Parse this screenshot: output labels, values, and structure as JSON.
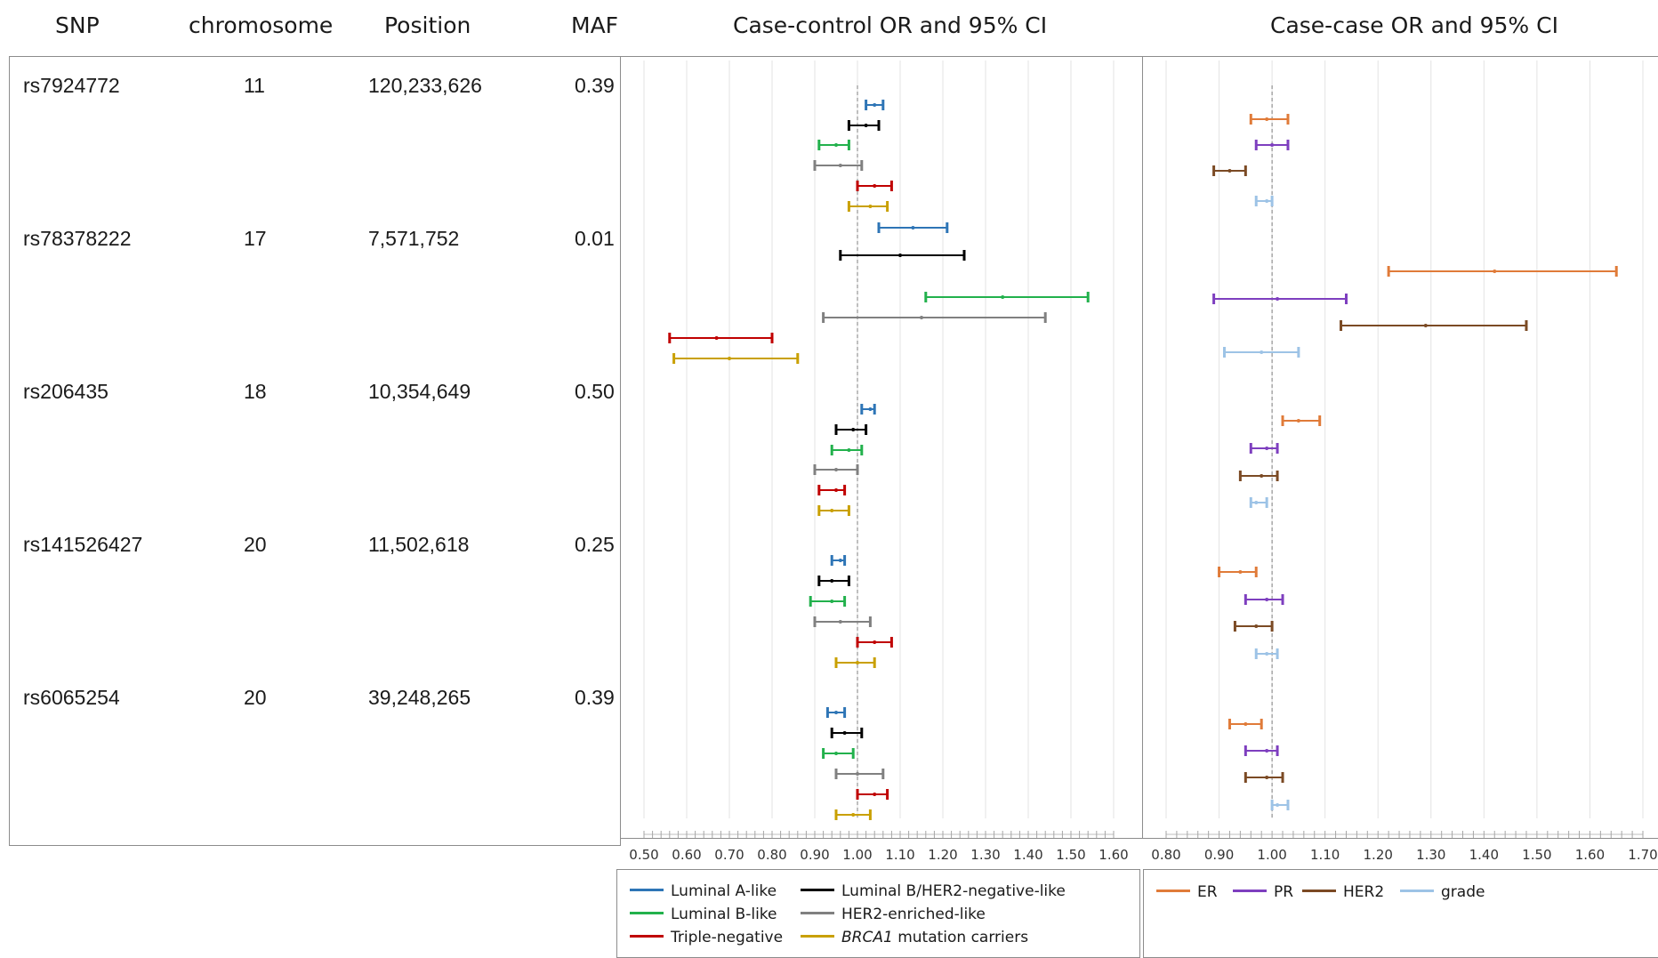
{
  "headers": {
    "snp": "SNP",
    "chromosome": "chromosome",
    "position": "Position",
    "maf": "MAF",
    "case_control": "Case-control OR and 95% CI",
    "case_case": "Case-case OR and 95% CI"
  },
  "rows": [
    {
      "snp": "rs7924772",
      "chromosome": "11",
      "position": "120,233,626",
      "maf": "0.39"
    },
    {
      "snp": "rs78378222",
      "chromosome": "17",
      "position": "7,571,752",
      "maf": "0.01"
    },
    {
      "snp": "rs206435",
      "chromosome": "18",
      "position": "10,354,649",
      "maf": "0.50"
    },
    {
      "snp": "rs141526427",
      "chromosome": "20",
      "position": "11,502,618",
      "maf": "0.25"
    },
    {
      "snp": "rs6065254",
      "chromosome": "20",
      "position": "39,248,265",
      "maf": "0.39"
    }
  ],
  "legend_case_control": [
    {
      "label": "Luminal A-like",
      "color": "#2e75b6",
      "italic_prefix": ""
    },
    {
      "label": "Luminal B/HER2-negative-like",
      "color": "#000000",
      "italic_prefix": ""
    },
    {
      "label": "Luminal B-like",
      "color": "#22b14c",
      "italic_prefix": ""
    },
    {
      "label": "HER2-enriched-like",
      "color": "#808080",
      "italic_prefix": ""
    },
    {
      "label": "Triple-negative",
      "color": "#c00000",
      "italic_prefix": ""
    },
    {
      "label": " mutation carriers",
      "color": "#c9a000",
      "italic_prefix": "BRCA1"
    }
  ],
  "legend_case_case": [
    {
      "label": "ER",
      "color": "#e07b39"
    },
    {
      "label": "PR",
      "color": "#7e3fbf"
    },
    {
      "label": "HER2",
      "color": "#7b4a24"
    },
    {
      "label": "grade",
      "color": "#9dc3e6"
    }
  ],
  "chart_data": [
    {
      "type": "forest",
      "title": "Case-control OR and 95% CI",
      "xlim": [
        0.5,
        1.6
      ],
      "ticks": [
        "0.50",
        "0.60",
        "0.70",
        "0.80",
        "0.90",
        "1.00",
        "1.10",
        "1.20",
        "1.30",
        "1.40",
        "1.50",
        "1.60"
      ],
      "reference_line": 1.0,
      "series": [
        {
          "name": "Luminal A-like",
          "color": "#2e75b6"
        },
        {
          "name": "Luminal B/HER2-negative-like",
          "color": "#000000"
        },
        {
          "name": "Luminal B-like",
          "color": "#22b14c"
        },
        {
          "name": "HER2-enriched-like",
          "color": "#808080"
        },
        {
          "name": "Triple-negative",
          "color": "#c00000"
        },
        {
          "name": "BRCA1 mutation carriers",
          "color": "#c9a000"
        }
      ],
      "groups": [
        {
          "snp": "rs7924772",
          "estimates": [
            {
              "or": 1.04,
              "lo": 1.02,
              "hi": 1.06
            },
            {
              "or": 1.02,
              "lo": 0.98,
              "hi": 1.05
            },
            {
              "or": 0.95,
              "lo": 0.91,
              "hi": 0.98
            },
            {
              "or": 0.96,
              "lo": 0.9,
              "hi": 1.01
            },
            {
              "or": 1.04,
              "lo": 1.0,
              "hi": 1.08
            },
            {
              "or": 1.03,
              "lo": 0.98,
              "hi": 1.07
            }
          ]
        },
        {
          "snp": "rs78378222",
          "estimates": [
            {
              "or": 1.13,
              "lo": 1.05,
              "hi": 1.21
            },
            {
              "or": 1.1,
              "lo": 0.96,
              "hi": 1.25
            },
            {
              "or": 1.34,
              "lo": 1.16,
              "hi": 1.54
            },
            {
              "or": 1.15,
              "lo": 0.92,
              "hi": 1.44
            },
            {
              "or": 0.67,
              "lo": 0.56,
              "hi": 0.8
            },
            {
              "or": 0.7,
              "lo": 0.57,
              "hi": 0.86
            }
          ]
        },
        {
          "snp": "rs206435",
          "estimates": [
            {
              "or": 1.03,
              "lo": 1.01,
              "hi": 1.04
            },
            {
              "or": 0.99,
              "lo": 0.95,
              "hi": 1.02
            },
            {
              "or": 0.98,
              "lo": 0.94,
              "hi": 1.01
            },
            {
              "or": 0.95,
              "lo": 0.9,
              "hi": 1.0
            },
            {
              "or": 0.95,
              "lo": 0.91,
              "hi": 0.97
            },
            {
              "or": 0.94,
              "lo": 0.91,
              "hi": 0.98
            }
          ]
        },
        {
          "snp": "rs141526427",
          "estimates": [
            {
              "or": 0.96,
              "lo": 0.94,
              "hi": 0.97
            },
            {
              "or": 0.94,
              "lo": 0.91,
              "hi": 0.98
            },
            {
              "or": 0.94,
              "lo": 0.89,
              "hi": 0.97
            },
            {
              "or": 0.96,
              "lo": 0.9,
              "hi": 1.03
            },
            {
              "or": 1.04,
              "lo": 1.0,
              "hi": 1.08
            },
            {
              "or": 1.0,
              "lo": 0.95,
              "hi": 1.04
            }
          ]
        },
        {
          "snp": "rs6065254",
          "estimates": [
            {
              "or": 0.95,
              "lo": 0.93,
              "hi": 0.97
            },
            {
              "or": 0.97,
              "lo": 0.94,
              "hi": 1.01
            },
            {
              "or": 0.95,
              "lo": 0.92,
              "hi": 0.99
            },
            {
              "or": 1.0,
              "lo": 0.95,
              "hi": 1.06
            },
            {
              "or": 1.04,
              "lo": 1.0,
              "hi": 1.07
            },
            {
              "or": 0.99,
              "lo": 0.95,
              "hi": 1.03
            }
          ]
        }
      ]
    },
    {
      "type": "forest",
      "title": "Case-case OR and 95% CI",
      "xlim": [
        0.8,
        1.7
      ],
      "ticks": [
        "0.80",
        "0.90",
        "1.00",
        "1.10",
        "1.20",
        "1.30",
        "1.40",
        "1.50",
        "1.60",
        "1.70"
      ],
      "reference_line": 1.0,
      "series": [
        {
          "name": "ER",
          "color": "#e07b39"
        },
        {
          "name": "PR",
          "color": "#7e3fbf"
        },
        {
          "name": "HER2",
          "color": "#7b4a24"
        },
        {
          "name": "grade",
          "color": "#9dc3e6"
        }
      ],
      "groups": [
        {
          "snp": "rs7924772",
          "estimates": [
            {
              "or": 0.99,
              "lo": 0.96,
              "hi": 1.03
            },
            {
              "or": 1.0,
              "lo": 0.97,
              "hi": 1.03
            },
            {
              "or": 0.92,
              "lo": 0.89,
              "hi": 0.95
            },
            {
              "or": 0.99,
              "lo": 0.97,
              "hi": 1.0
            }
          ]
        },
        {
          "snp": "rs78378222",
          "estimates": [
            {
              "or": 1.42,
              "lo": 1.22,
              "hi": 1.65
            },
            {
              "or": 1.01,
              "lo": 0.89,
              "hi": 1.14
            },
            {
              "or": 1.29,
              "lo": 1.13,
              "hi": 1.48
            },
            {
              "or": 0.98,
              "lo": 0.91,
              "hi": 1.05
            }
          ]
        },
        {
          "snp": "rs206435",
          "estimates": [
            {
              "or": 1.05,
              "lo": 1.02,
              "hi": 1.09
            },
            {
              "or": 0.99,
              "lo": 0.96,
              "hi": 1.01
            },
            {
              "or": 0.98,
              "lo": 0.94,
              "hi": 1.01
            },
            {
              "or": 0.97,
              "lo": 0.96,
              "hi": 0.99
            }
          ]
        },
        {
          "snp": "rs141526427",
          "estimates": [
            {
              "or": 0.94,
              "lo": 0.9,
              "hi": 0.97
            },
            {
              "or": 0.99,
              "lo": 0.95,
              "hi": 1.02
            },
            {
              "or": 0.97,
              "lo": 0.93,
              "hi": 1.0
            },
            {
              "or": 0.99,
              "lo": 0.97,
              "hi": 1.01
            }
          ]
        },
        {
          "snp": "rs6065254",
          "estimates": [
            {
              "or": 0.95,
              "lo": 0.92,
              "hi": 0.98
            },
            {
              "or": 0.99,
              "lo": 0.95,
              "hi": 1.01
            },
            {
              "or": 0.99,
              "lo": 0.95,
              "hi": 1.02
            },
            {
              "or": 1.01,
              "lo": 1.0,
              "hi": 1.03
            }
          ]
        }
      ]
    }
  ]
}
